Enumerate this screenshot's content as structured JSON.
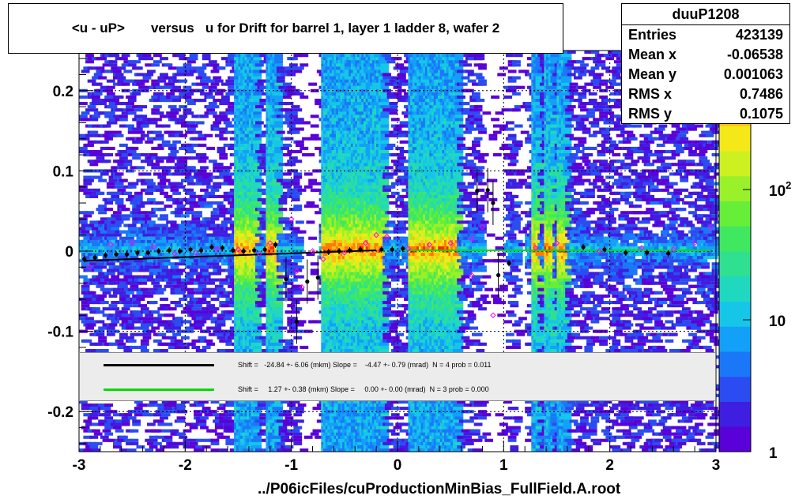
{
  "title": "<u - uP>       versus   u for Drift for barrel 1, layer 1 ladder 8, wafer 2",
  "xlabel": "../P06icFiles/cuProductionMinBias_FullField.A.root",
  "stats": {
    "name": "duuP1208",
    "rows": [
      {
        "label": "Entries",
        "value": "423139"
      },
      {
        "label": "Mean x",
        "value": "-0.06538"
      },
      {
        "label": "Mean y",
        "value": "0.001063"
      },
      {
        "label": "RMS x",
        "value": "0.7486"
      },
      {
        "label": "RMS y",
        "value": "0.1075"
      }
    ]
  },
  "fits": [
    {
      "color": "#000000",
      "text": "Shift =   -24.84 +- 6.06 (mkm) Slope =    -4.47 +- 0.79 (mrad)  N = 4 prob = 0.011"
    },
    {
      "color": "#00dd00",
      "text": "Shift =     1.27 +- 0.38 (mkm) Slope =     0.00 +- 0.00 (mrad)  N = 3 prob = 0.000"
    }
  ],
  "chart_data": {
    "type": "heatmap",
    "xlim": [
      -3,
      3
    ],
    "ylim": [
      -0.25,
      0.25
    ],
    "x_ticks": [
      "-3",
      "-2",
      "-1",
      "0",
      "1",
      "2",
      "3"
    ],
    "y_ticks": [
      "-0.2",
      "-0.1",
      "0",
      "0.1",
      "0.2"
    ],
    "z_scale": "log",
    "z_ticks": [
      "1",
      "10",
      "10^2"
    ],
    "grid": true,
    "profile_black": [
      {
        "x": -2.95,
        "y": -0.01
      },
      {
        "x": -2.85,
        "y": -0.008
      },
      {
        "x": -2.75,
        "y": -0.005
      },
      {
        "x": -2.65,
        "y": -0.004
      },
      {
        "x": -2.55,
        "y": -0.004
      },
      {
        "x": -2.45,
        "y": -0.002
      },
      {
        "x": -2.35,
        "y": -0.002
      },
      {
        "x": -2.25,
        "y": 0.0
      },
      {
        "x": -2.15,
        "y": 0.001
      },
      {
        "x": -2.05,
        "y": 0.0
      },
      {
        "x": -1.95,
        "y": 0.002
      },
      {
        "x": -1.85,
        "y": 0.001
      },
      {
        "x": -1.75,
        "y": 0.005
      },
      {
        "x": -1.65,
        "y": 0.004
      },
      {
        "x": -1.55,
        "y": 0.001
      },
      {
        "x": -1.45,
        "y": 0.0
      },
      {
        "x": -1.35,
        "y": 0.001
      },
      {
        "x": -1.25,
        "y": 0.002
      },
      {
        "x": -1.15,
        "y": 0.008
      },
      {
        "x": -1.05,
        "y": -0.035
      },
      {
        "x": -0.95,
        "y": -0.088
      },
      {
        "x": -0.85,
        "y": -0.038
      },
      {
        "x": -0.75,
        "y": -0.033
      },
      {
        "x": -0.65,
        "y": -0.001
      },
      {
        "x": -0.55,
        "y": 0.0
      },
      {
        "x": -0.45,
        "y": 0.001
      },
      {
        "x": -0.35,
        "y": 0.002
      },
      {
        "x": -0.15,
        "y": 0.002
      },
      {
        "x": -0.05,
        "y": 0.002
      },
      {
        "x": 0.05,
        "y": 0.003
      },
      {
        "x": 0.75,
        "y": 0.075
      },
      {
        "x": 0.85,
        "y": 0.076
      },
      {
        "x": 0.9,
        "y": 0.06
      },
      {
        "x": 0.95,
        "y": -0.03
      },
      {
        "x": 1.05,
        "y": -0.015
      },
      {
        "x": 1.75,
        "y": 0.005
      },
      {
        "x": 1.95,
        "y": 0.002
      },
      {
        "x": 2.15,
        "y": -0.002
      },
      {
        "x": 2.35,
        "y": -0.002
      },
      {
        "x": 2.55,
        "y": -0.003
      }
    ],
    "profile_magenta": [
      {
        "x": -2.9,
        "y": -0.02
      },
      {
        "x": -2.7,
        "y": 0.008
      },
      {
        "x": -2.5,
        "y": 0.01
      },
      {
        "x": -2.3,
        "y": 0.005
      },
      {
        "x": -2.1,
        "y": -0.003
      },
      {
        "x": -1.9,
        "y": -0.002
      },
      {
        "x": -1.7,
        "y": 0.003
      },
      {
        "x": -1.5,
        "y": 0.002
      },
      {
        "x": -1.3,
        "y": -0.003
      },
      {
        "x": -1.2,
        "y": 0.01
      },
      {
        "x": -1.0,
        "y": 0.04
      },
      {
        "x": -0.95,
        "y": -0.025
      },
      {
        "x": -0.9,
        "y": -0.045
      },
      {
        "x": -0.8,
        "y": 0.0
      },
      {
        "x": -0.7,
        "y": -0.01
      },
      {
        "x": -0.5,
        "y": -0.002
      },
      {
        "x": -0.3,
        "y": 0.01
      },
      {
        "x": -0.2,
        "y": 0.02
      },
      {
        "x": -0.1,
        "y": 0.018
      },
      {
        "x": 0.1,
        "y": 0.003
      },
      {
        "x": 0.3,
        "y": 0.008
      },
      {
        "x": 0.5,
        "y": 0.01
      },
      {
        "x": 0.7,
        "y": 0.015
      },
      {
        "x": 0.8,
        "y": 0.03
      },
      {
        "x": 0.7,
        "y": -0.03
      },
      {
        "x": 0.9,
        "y": -0.08
      },
      {
        "x": 1.3,
        "y": 0.004
      },
      {
        "x": 1.5,
        "y": 0.01
      },
      {
        "x": 1.9,
        "y": 0.0
      },
      {
        "x": 2.3,
        "y": 0.004
      },
      {
        "x": 2.6,
        "y": 0.002
      },
      {
        "x": 2.8,
        "y": 0.01
      },
      {
        "x": 2.95,
        "y": 0.03
      }
    ],
    "fit_black": {
      "x": [
        -2.95,
        -0.2
      ],
      "y": [
        -0.012,
        0.001
      ]
    },
    "fit_green": {
      "x": [
        0.05,
        2.95
      ],
      "y": [
        0.001,
        0.001
      ]
    }
  }
}
